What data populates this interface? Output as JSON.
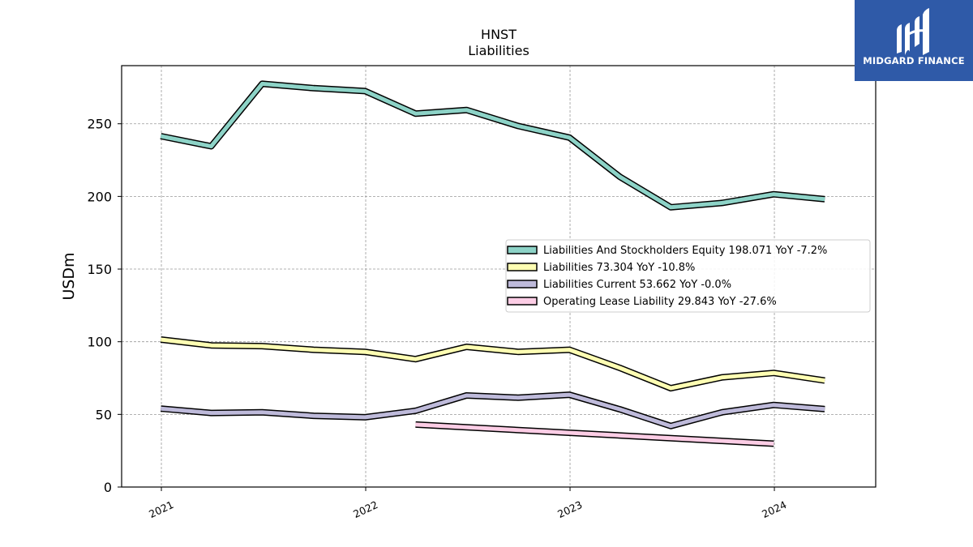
{
  "chart_data": {
    "type": "line",
    "title": "HNST",
    "subtitle": "Liabilities",
    "ylabel": "USDm",
    "xlabel": "",
    "ylim": [
      0,
      290
    ],
    "xlim": [
      "2020-10-22",
      "2024-06-30"
    ],
    "yticks": [
      0,
      50,
      100,
      150,
      200,
      250
    ],
    "xticks": [
      "2021",
      "2022",
      "2023",
      "2024"
    ],
    "grid": true,
    "legend_position": "center-right",
    "series": [
      {
        "name": "Liabilities And Stockholders Equity",
        "legend_label": "Liabilities And Stockholders Equity  198.071 YoY -7.2%",
        "color": "#8dd3c7",
        "x": [
          "2020-12-31",
          "2021-03-31",
          "2021-06-30",
          "2021-09-30",
          "2021-12-31",
          "2022-03-31",
          "2022-06-30",
          "2022-09-30",
          "2022-12-31",
          "2023-03-31",
          "2023-06-30",
          "2023-09-30",
          "2023-12-31",
          "2024-03-31"
        ],
        "y": [
          241.5,
          234.5,
          277.5,
          274.5,
          272.5,
          257.0,
          259.5,
          248.5,
          240.5,
          213.5,
          192.5,
          195.5,
          201.5,
          198.071
        ]
      },
      {
        "name": "Liabilities",
        "legend_label": "Liabilities  73.304 YoY -10.8%",
        "color": "#ffffb3",
        "x": [
          "2020-12-31",
          "2021-03-31",
          "2021-06-30",
          "2021-09-30",
          "2021-12-31",
          "2022-03-31",
          "2022-06-30",
          "2022-09-30",
          "2022-12-31",
          "2023-03-31",
          "2023-06-30",
          "2023-09-30",
          "2023-12-31",
          "2024-03-31"
        ],
        "y": [
          101.5,
          97.5,
          97.0,
          94.5,
          93.0,
          88.0,
          96.5,
          93.0,
          94.5,
          82.0,
          68.0,
          75.5,
          78.5,
          73.304
        ]
      },
      {
        "name": "Liabilities Current",
        "legend_label": "Liabilities Current  53.662 YoY -0.0%",
        "color": "#bebada",
        "x": [
          "2020-12-31",
          "2021-03-31",
          "2021-06-30",
          "2021-09-30",
          "2021-12-31",
          "2022-03-31",
          "2022-06-30",
          "2022-09-30",
          "2022-12-31",
          "2023-03-31",
          "2023-06-30",
          "2023-09-30",
          "2023-12-31",
          "2024-03-31"
        ],
        "y": [
          54.0,
          51.0,
          51.5,
          49.0,
          48.0,
          52.5,
          63.0,
          61.5,
          63.5,
          53.5,
          42.0,
          51.5,
          56.5,
          53.662
        ]
      },
      {
        "name": "Operating Lease Liability",
        "legend_label": "Operating Lease Liability  29.843 YoY -27.6%",
        "color": "#fccde5",
        "x": [
          "2022-03-31",
          "2023-12-31"
        ],
        "y": [
          43.0,
          29.843
        ]
      }
    ]
  },
  "branding": {
    "logo_text": "MIDGARD FINANCE",
    "logo_bg": "#2f5aa8"
  }
}
